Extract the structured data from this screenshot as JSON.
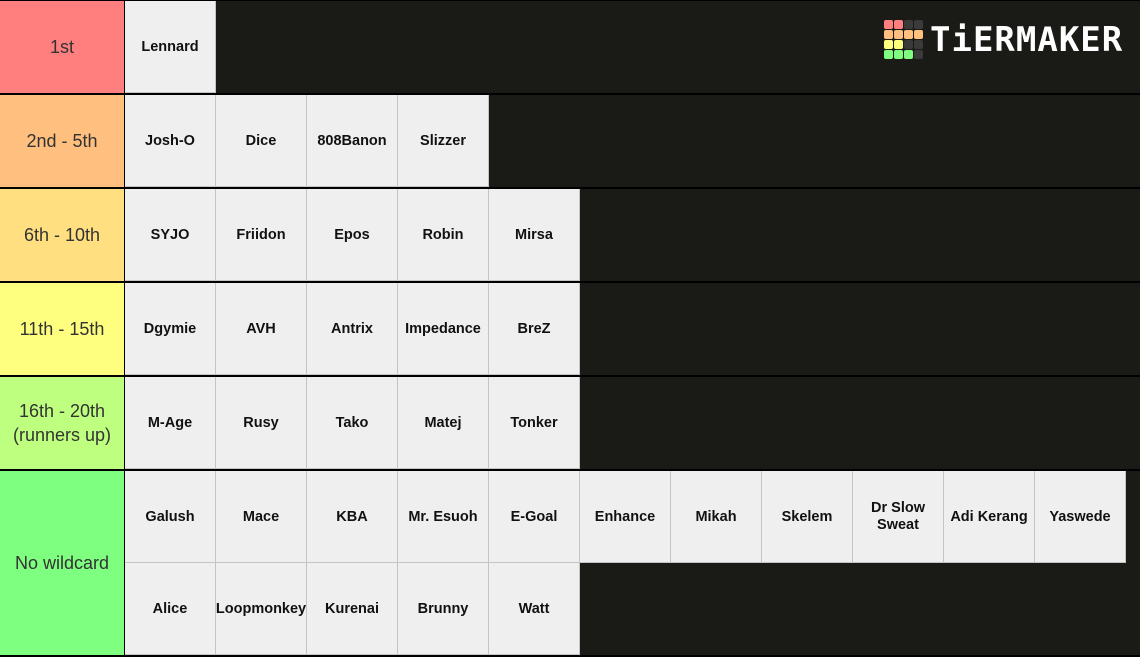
{
  "logo": {
    "text": "TiERMAKER",
    "grid_colors": [
      "#ff7f7f",
      "#ff7f7f",
      "#3a3a3a",
      "#3a3a3a",
      "#ffbf7f",
      "#ffbf7f",
      "#ffbf7f",
      "#ffbf7f",
      "#ffff7f",
      "#ffff7f",
      "#3a3a3a",
      "#3a3a3a",
      "#7fff7f",
      "#7fff7f",
      "#7fff7f",
      "#3a3a3a"
    ]
  },
  "tiers": [
    {
      "label": "1st",
      "color": "#ff7f7f",
      "items": [
        "Lennard"
      ]
    },
    {
      "label": "2nd - 5th",
      "color": "#ffbf7f",
      "items": [
        "Josh-O",
        "Dice",
        "808Banon",
        "Slizzer"
      ]
    },
    {
      "label": "6th - 10th",
      "color": "#ffdf7f",
      "items": [
        "SYJO",
        "Friidon",
        "Epos",
        "Robin",
        "Mirsa"
      ]
    },
    {
      "label": "11th - 15th",
      "color": "#ffff7f",
      "items": [
        "Dgymie",
        "AVH",
        "Antrix",
        "Impedance",
        "BreZ"
      ]
    },
    {
      "label": "16th - 20th\n(runners up)",
      "color": "#bfff7f",
      "items": [
        "M-Age",
        "Rusy",
        "Tako",
        "Matej",
        "Tonker"
      ]
    },
    {
      "label": "No wildcard",
      "color": "#7fff7f",
      "items": [
        "Galush",
        "Mace",
        "KBA",
        "Mr. Esuoh",
        "E-Goal",
        "Enhance",
        "Mikah",
        "Skelem",
        "Dr Slow Sweat",
        "Adi Kerang",
        "Yaswede",
        "Alice",
        "Loopmonkey",
        "Kurenai",
        "Brunny",
        "Watt"
      ]
    }
  ]
}
